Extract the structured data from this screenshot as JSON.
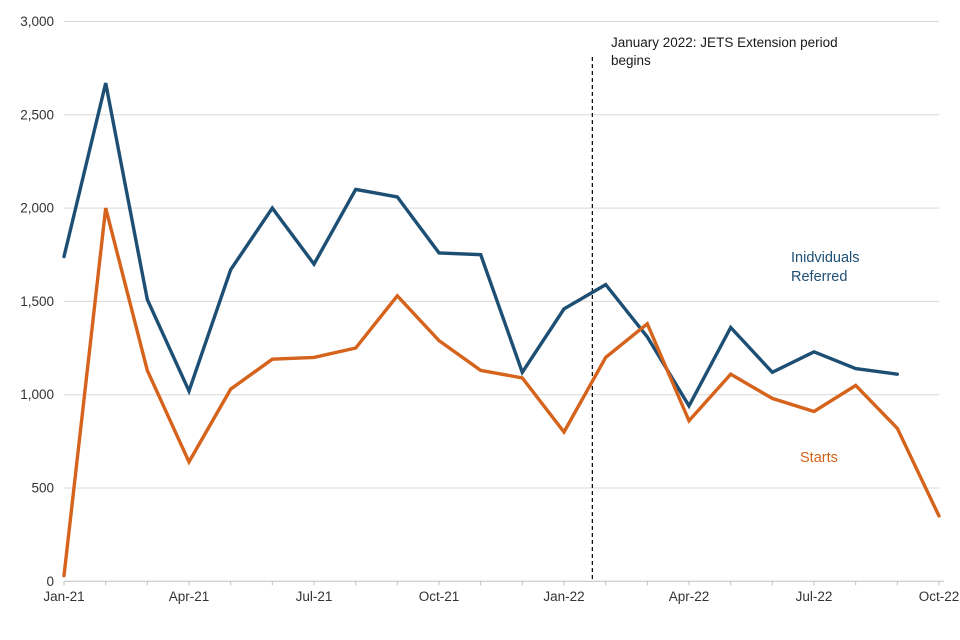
{
  "chart_data": {
    "type": "line",
    "title": "",
    "xlabel": "",
    "ylabel": "",
    "x": [
      "Jan-21",
      "Feb-21",
      "Mar-21",
      "Apr-21",
      "May-21",
      "Jun-21",
      "Jul-21",
      "Aug-21",
      "Sep-21",
      "Oct-21",
      "Nov-21",
      "Dec-21",
      "Jan-22",
      "Feb-22",
      "Mar-22",
      "Apr-22",
      "May-22",
      "Jun-22",
      "Jul-22",
      "Aug-22",
      "Sep-22",
      "Oct-22"
    ],
    "series": [
      {
        "name": "Inidviduals Referred",
        "color": "#1D4F74",
        "values": [
          1740,
          2670,
          1510,
          1020,
          1670,
          2000,
          1700,
          2100,
          2060,
          1760,
          1750,
          1120,
          1460,
          1590,
          1310,
          940,
          1360,
          1120,
          1230,
          1140,
          1110,
          null
        ]
      },
      {
        "name": "Starts",
        "color": "#D5631C",
        "values": [
          30,
          2000,
          1130,
          640,
          1030,
          1190,
          1200,
          1250,
          1530,
          1290,
          1130,
          1090,
          800,
          1200,
          1380,
          860,
          1110,
          980,
          910,
          1050,
          820,
          350
        ]
      }
    ],
    "ylim": [
      0,
      3000
    ],
    "ytick_step": 500,
    "ytick_labels": [
      "0",
      "500",
      "1,000",
      "1,500",
      "2,000",
      "2,500",
      "3,000"
    ],
    "xtick_shown_every": 3,
    "xtick_labels_shown": [
      "Jan-21",
      "Apr-21",
      "Jul-21",
      "Oct-21",
      "Jan-22",
      "Apr-22",
      "Jul-22",
      "Oct-22"
    ],
    "grid": "horizontal-on",
    "legend_position": "inline-labels-right",
    "vline": {
      "position_month_index": 12.68,
      "style": "black-dashed",
      "label": "January 2022: JETS Extension period begins"
    }
  },
  "annotation": {
    "line1": "January 2022: JETS Extension period",
    "line2": "begins"
  },
  "series_labels": {
    "referred_line1": "Inidviduals",
    "referred_line2": "Referred",
    "starts": "Starts"
  },
  "colors": {
    "referred_line": "#1D4F74",
    "starts_line": "#D5631C",
    "gridline": "#D9D9D9",
    "axis_line": "#BFBFBF",
    "axis_text": "#333333",
    "annotation_text": "#1a1a1a"
  }
}
